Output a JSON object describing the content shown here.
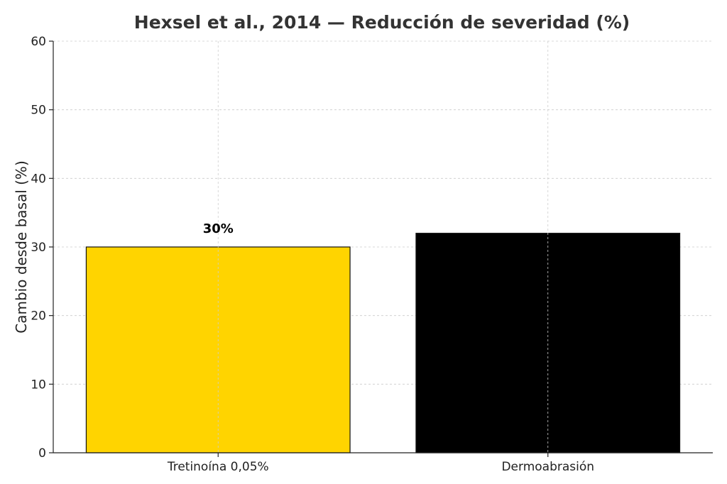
{
  "chart_data": {
    "type": "bar",
    "title": "Hexsel et al., 2014 — Reducción de severidad (%)",
    "xlabel": "",
    "ylabel": "Cambio desde basal (%)",
    "ylim": [
      0,
      60
    ],
    "yticks": [
      0,
      10,
      20,
      30,
      40,
      50,
      60
    ],
    "categories": [
      "Tretinoína 0,05%",
      "Dermoabrasión"
    ],
    "values": [
      30,
      32
    ],
    "colors": [
      "#FFD400",
      "#000000"
    ],
    "data_labels": [
      "30%",
      ""
    ],
    "grid": true
  }
}
